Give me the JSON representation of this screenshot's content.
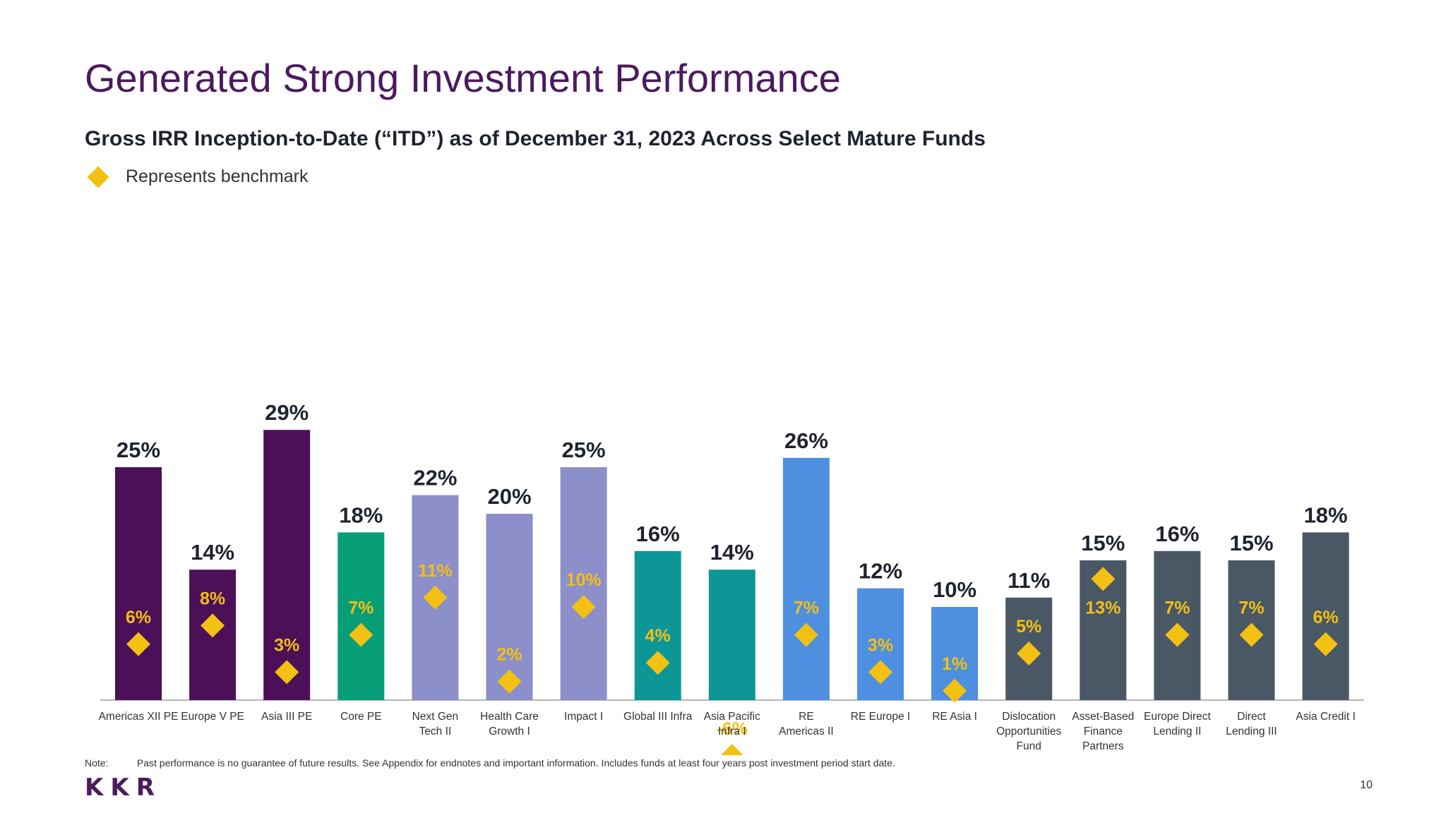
{
  "title": "Generated Strong Investment Performance",
  "subtitle": "Gross IRR Inception-to-Date (“ITD”) as of December 31, 2023 Across Select Mature Funds",
  "legend": {
    "label": "Represents benchmark",
    "icon": "diamond-icon",
    "color": "#f3c014"
  },
  "note": {
    "label": "Note:",
    "text": "Past performance is no guarantee of future results. See Appendix for endnotes and important information. Includes funds at least four years post investment period start date."
  },
  "logo": "KKR",
  "page_number": "10",
  "chart_data": {
    "type": "bar",
    "ylim": [
      -6,
      30
    ],
    "grid": false,
    "categories": [
      [
        "Americas XII PE"
      ],
      [
        "Europe V PE"
      ],
      [
        "Asia III PE"
      ],
      [
        "Core PE"
      ],
      [
        "Next Gen",
        "Tech II"
      ],
      [
        "Health Care",
        "Growth I"
      ],
      [
        "Impact I"
      ],
      [
        "Global III Infra"
      ],
      [
        "Asia Pacific",
        "Infra I"
      ],
      [
        "RE",
        "Americas II"
      ],
      [
        "RE Europe I"
      ],
      [
        "RE Asia I"
      ],
      [
        "Dislocation",
        "Opportunities",
        "Fund"
      ],
      [
        "Asset-Based",
        "Finance",
        "Partners"
      ],
      [
        "Europe Direct",
        "Lending II"
      ],
      [
        "Direct",
        "Lending III"
      ],
      [
        "Asia Credit I"
      ]
    ],
    "series": [
      {
        "values": [
          25,
          14,
          29,
          18,
          22,
          20,
          25,
          16,
          14,
          26,
          12,
          10,
          11,
          15,
          16,
          15,
          18
        ],
        "labels": [
          "25%",
          "14%",
          "29%",
          "18%",
          "22%",
          "20%",
          "25%",
          "16%",
          "14%",
          "26%",
          "12%",
          "10%",
          "11%",
          "15%",
          "16%",
          "15%",
          "18%"
        ]
      },
      {
        "name": "Represents benchmark",
        "values": [
          6,
          8,
          3,
          7,
          11,
          2,
          10,
          4,
          -6,
          7,
          3,
          1,
          5,
          13,
          7,
          7,
          6
        ],
        "labels": [
          "6%",
          "8%",
          "3%",
          "7%",
          "11%",
          "2%",
          "10%",
          "4%",
          "-6%",
          "7%",
          "3%",
          "1%",
          "5%",
          "13%",
          "7%",
          "7%",
          "6%"
        ]
      }
    ],
    "bar_colors": [
      "#4b1057",
      "#4b1057",
      "#4b1057",
      "#079e78",
      "#8c8fc9",
      "#8c8fc9",
      "#8c8fc9",
      "#0d9696",
      "#0d9696",
      "#4f8fdf",
      "#4f8fdf",
      "#4f8fdf",
      "#4a5866",
      "#4a5866",
      "#4a5866",
      "#4a5866",
      "#4a5866"
    ],
    "value_label_color": "#1f2330",
    "benchmark_color": "#f3c014"
  }
}
